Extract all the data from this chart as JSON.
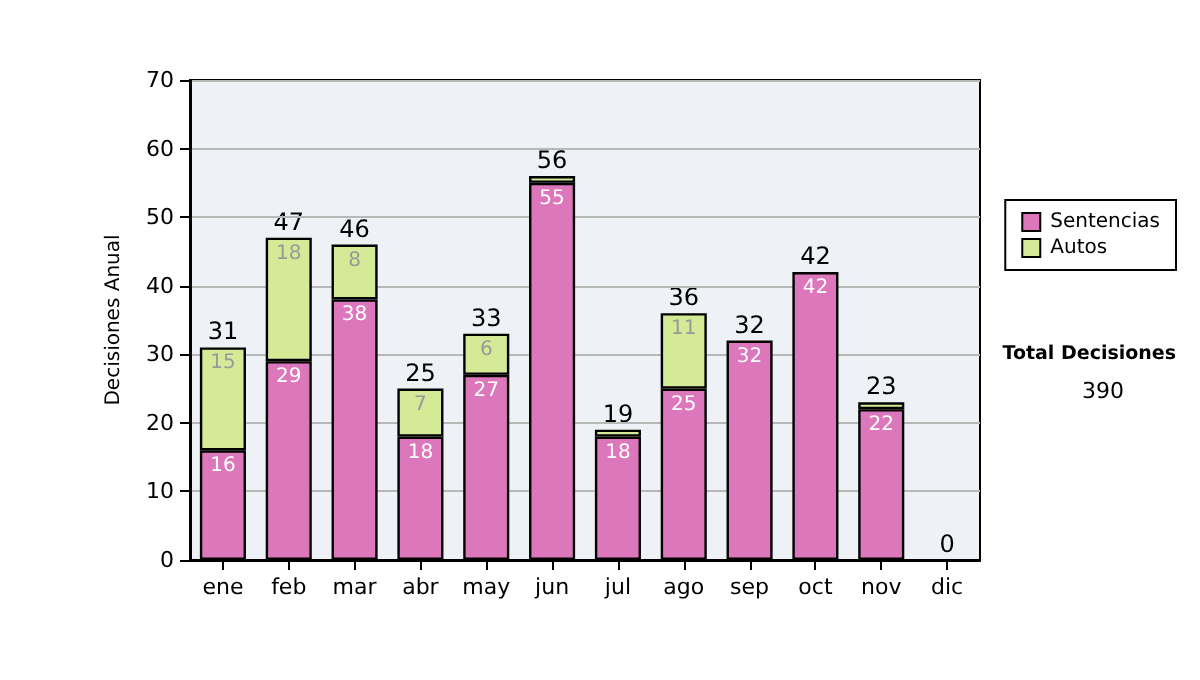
{
  "chart_data": {
    "type": "bar",
    "stacked": true,
    "ylabel": "Decisiones Anual",
    "categories": [
      "ene",
      "feb",
      "mar",
      "abr",
      "may",
      "jun",
      "jul",
      "ago",
      "sep",
      "oct",
      "nov",
      "dic"
    ],
    "series": [
      {
        "name": "Sentencias",
        "color": "#dd77bb",
        "values": [
          16,
          29,
          38,
          18,
          27,
          55,
          18,
          25,
          32,
          42,
          22,
          0
        ],
        "value_labels": [
          "16",
          "29",
          "38",
          "18",
          "27",
          "55",
          "18",
          "25",
          "32",
          "42",
          "22",
          null
        ]
      },
      {
        "name": "Autos",
        "color": "#d4ea96",
        "values": [
          15,
          18,
          8,
          7,
          6,
          1,
          1,
          11,
          0,
          0,
          1,
          0
        ],
        "value_labels": [
          "15",
          "18",
          "8",
          "7",
          "6",
          null,
          null,
          "11",
          null,
          null,
          null,
          null
        ]
      }
    ],
    "totals": [
      "31",
      "47",
      "46",
      "25",
      "33",
      "56",
      "19",
      "36",
      "32",
      "42",
      "23",
      "0"
    ],
    "ylim": [
      0,
      70
    ],
    "yticks": [
      0,
      10,
      20,
      30,
      40,
      50,
      60,
      70
    ],
    "grid": "y",
    "legend": "right",
    "annotations": [
      "Total Decisiones",
      "390"
    ]
  }
}
